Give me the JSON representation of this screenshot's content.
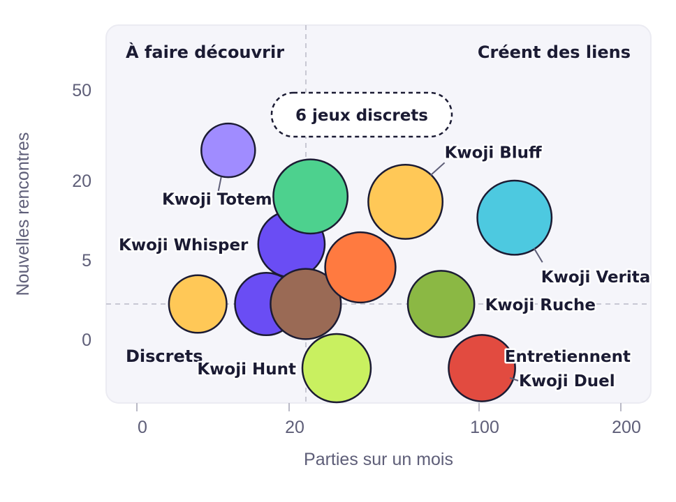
{
  "chart_data": {
    "type": "scatter",
    "xlabel": "Parties sur un mois",
    "ylabel": "Nouvelles rencontres",
    "x_ticks": [
      {
        "value": 0,
        "label": "0"
      },
      {
        "value": 20,
        "label": "20"
      },
      {
        "value": 100,
        "label": "100"
      },
      {
        "value": 200,
        "label": "200"
      }
    ],
    "y_ticks": [
      {
        "value": 0,
        "label": "0"
      },
      {
        "value": 5,
        "label": "5"
      },
      {
        "value": 20,
        "label": "20"
      },
      {
        "value": 50,
        "label": "50"
      }
    ],
    "scale": "nonlinear (tick-based)",
    "quadrant_labels": {
      "top_left": "À faire découvrir",
      "top_right": "Créent des liens",
      "bottom_left": "Discrets",
      "bottom_right": "Entretiennent"
    },
    "dividers": {
      "x": 22,
      "y": 2
    },
    "cluster_note": "6 jeux discrets",
    "points": [
      {
        "name": "Kwoji Totem",
        "x": 12,
        "y": 30,
        "size": 0.55,
        "color": "#a08cff",
        "label": "Kwoji Totem"
      },
      {
        "name": "Kwoji Whisper",
        "x": 21,
        "y": 8,
        "size": 0.68,
        "color": "#6a4df4",
        "label": "Kwoji Whisper"
      },
      {
        "name": "",
        "x": 8,
        "y": 2,
        "size": 0.59,
        "color": "#ffc857",
        "label": ""
      },
      {
        "name": "",
        "x": 17,
        "y": 2,
        "size": 0.64,
        "color": "#6a4df4",
        "label": ""
      },
      {
        "name": "",
        "x": 27,
        "y": 2,
        "size": 0.72,
        "color": "#9a6a55",
        "label": ""
      },
      {
        "name": "",
        "x": 29,
        "y": 17,
        "size": 0.76,
        "color": "#4dd18e",
        "label": ""
      },
      {
        "name": "Kwoji Bluff",
        "x": 69,
        "y": 16,
        "size": 0.76,
        "color": "#ffc857",
        "label": "Kwoji Bluff"
      },
      {
        "name": "",
        "x": 50,
        "y": 4.5,
        "size": 0.72,
        "color": "#ff7a40",
        "label": ""
      },
      {
        "name": "Kwoji Verita",
        "x": 125,
        "y": 13,
        "size": 0.76,
        "color": "#4dc9e0",
        "label": "Kwoji Verita"
      },
      {
        "name": "Kwoji Ruche",
        "x": 84,
        "y": 2,
        "size": 0.68,
        "color": "#8bb844",
        "label": "Kwoji Ruche"
      },
      {
        "name": "Kwoji Hunt",
        "x": 40,
        "y": -1,
        "size": 0.7,
        "color": "#c9f060",
        "label": "Kwoji Hunt"
      },
      {
        "name": "Kwoji Duel",
        "x": 102,
        "y": -1,
        "size": 0.68,
        "color": "#e24b40",
        "label": "Kwoji Duel"
      }
    ],
    "grid": false,
    "legend": "none"
  }
}
